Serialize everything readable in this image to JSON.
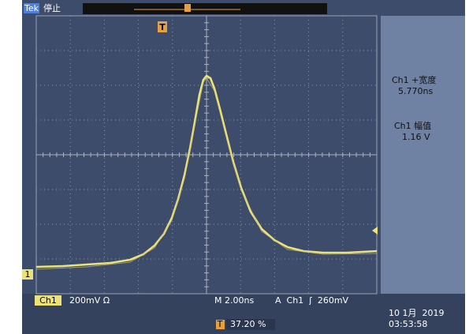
{
  "header": {
    "brand": "Tek",
    "status": "停止"
  },
  "markers": {
    "trigger": "T",
    "channel": "1"
  },
  "measurements": [
    {
      "label": "Ch1 +宽度",
      "value": "5.770ns"
    },
    {
      "label": "Ch1 幅值",
      "value": "1.16 V"
    }
  ],
  "footer": {
    "channel": "Ch1",
    "scale": "200mV Ω",
    "timebase": "M 2.00ns",
    "trigger": "A  Ch1  ʃ  260mV",
    "date": "10 1月  2019",
    "time": "03:53:58",
    "position": "37.20 %"
  }
}
